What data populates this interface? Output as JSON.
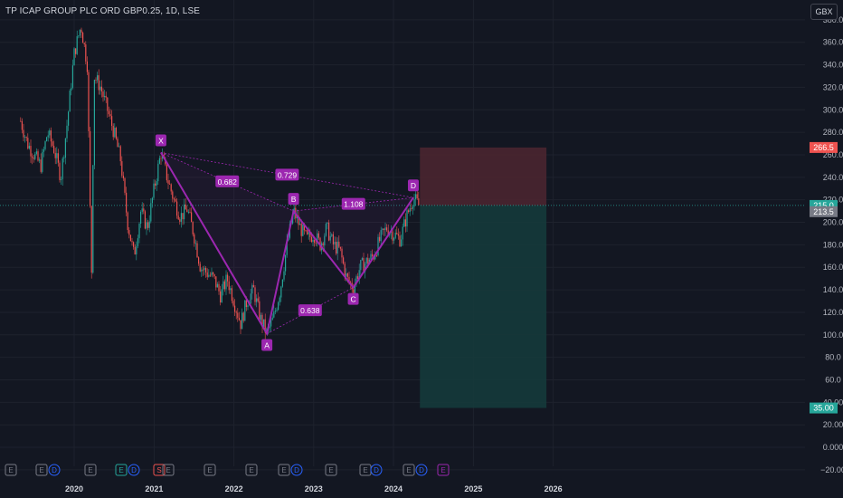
{
  "header": {
    "symbol_title": "TP ICAP GROUP PLC ORD GBP0.25, 1D, LSE"
  },
  "currency_button": "GBX",
  "colors": {
    "background": "#131722",
    "pattern": "#9c27b0",
    "pattern_label_bg": "#9c27b0",
    "stop_zone": "#4a2530",
    "target_zone": "#153a3b",
    "up_candle": "#26a69a",
    "down_candle": "#ef5350"
  },
  "chart_data": {
    "type": "candlestick",
    "title": "TP ICAP GROUP PLC ORD GBP0.25, 1D, LSE",
    "ylabel": "GBX",
    "ylim": [
      -35,
      395
    ],
    "y_ticks": [
      "380.0",
      "360.0",
      "340.0",
      "320.0",
      "300.0",
      "280.0",
      "260.0",
      "240.0",
      "220.0",
      "200.0",
      "180.0",
      "160.0",
      "140.0",
      "120.0",
      "100.0",
      "80.0",
      "60.0",
      "40.00",
      "20.00",
      "0.000",
      "−20.00"
    ],
    "x_ticks": [
      "2020",
      "2021",
      "2022",
      "2023",
      "2024",
      "2025",
      "2026"
    ],
    "price_path": [
      [
        "2019-05",
        290
      ],
      [
        "2019-06",
        270
      ],
      [
        "2019-08",
        250
      ],
      [
        "2019-09",
        280
      ],
      [
        "2019-10",
        265
      ],
      [
        "2019-11",
        240
      ],
      [
        "2019-12",
        290
      ],
      [
        "2020-01",
        350
      ],
      [
        "2020-02",
        375
      ],
      [
        "2020-03",
        340
      ],
      [
        "2020-03-20",
        150
      ],
      [
        "2020-04",
        330
      ],
      [
        "2020-05",
        320
      ],
      [
        "2020-06",
        300
      ],
      [
        "2020-07",
        280
      ],
      [
        "2020-08",
        255
      ],
      [
        "2020-09",
        200
      ],
      [
        "2020-10",
        170
      ],
      [
        "2020-11",
        210
      ],
      [
        "2020-12",
        195
      ],
      [
        "2021-01",
        230
      ],
      [
        "2021-02",
        262
      ],
      [
        "2021-03",
        240
      ],
      [
        "2021-04",
        220
      ],
      [
        "2021-05",
        205
      ],
      [
        "2021-06",
        212
      ],
      [
        "2021-07",
        190
      ],
      [
        "2021-08",
        160
      ],
      [
        "2021-10",
        150
      ],
      [
        "2021-11",
        135
      ],
      [
        "2021-12",
        150
      ],
      [
        "2022-01",
        130
      ],
      [
        "2022-02",
        110
      ],
      [
        "2022-03",
        130
      ],
      [
        "2022-04",
        140
      ],
      [
        "2022-05",
        115
      ],
      [
        "2022-06",
        101
      ],
      [
        "2022-07",
        115
      ],
      [
        "2022-08",
        140
      ],
      [
        "2022-09",
        180
      ],
      [
        "2022-10",
        210
      ],
      [
        "2022-11",
        195
      ],
      [
        "2022-12",
        185
      ],
      [
        "2023-01",
        190
      ],
      [
        "2023-02",
        180
      ],
      [
        "2023-03",
        195
      ],
      [
        "2023-04",
        180
      ],
      [
        "2023-05",
        175
      ],
      [
        "2023-06",
        150
      ],
      [
        "2023-07",
        142
      ],
      [
        "2023-08",
        160
      ],
      [
        "2023-09",
        165
      ],
      [
        "2023-10",
        170
      ],
      [
        "2023-11",
        185
      ],
      [
        "2023-12",
        195
      ],
      [
        "2024-01",
        190
      ],
      [
        "2024-02",
        185
      ],
      [
        "2024-03",
        205
      ],
      [
        "2024-04",
        222
      ],
      [
        "2024-05",
        213.5
      ]
    ],
    "harmonic_pattern": {
      "points": [
        {
          "label": "X",
          "date": "2021-02",
          "price": 262
        },
        {
          "label": "A",
          "date": "2022-06",
          "price": 101
        },
        {
          "label": "B",
          "date": "2022-10",
          "price": 210
        },
        {
          "label": "C",
          "date": "2023-07",
          "price": 142
        },
        {
          "label": "D",
          "date": "2024-04",
          "price": 222
        }
      ],
      "ratios": [
        {
          "value": "0.682",
          "between": [
            "X",
            "B"
          ]
        },
        {
          "value": "0.729",
          "between": [
            "X",
            "D"
          ]
        },
        {
          "value": "1.108",
          "between": [
            "B",
            "D"
          ]
        },
        {
          "value": "0.638",
          "between": [
            "A",
            "C"
          ]
        }
      ]
    },
    "position": {
      "entry": 215.0,
      "stop": 266.5,
      "target": 35.0,
      "start_date": "2024-05",
      "end_date": "2025-12"
    },
    "price_labels": [
      {
        "value": "266.5",
        "kind": "stop"
      },
      {
        "value": "215.0",
        "kind": "entry"
      },
      {
        "value": "213.5",
        "kind": "last"
      },
      {
        "value": "35.00",
        "kind": "target"
      }
    ],
    "event_markers": [
      "E",
      "E",
      "D",
      "E",
      "E",
      "D",
      "S",
      "E",
      "E",
      "E",
      "E",
      "D",
      "E",
      "E",
      "D",
      "E",
      "D",
      "E"
    ]
  }
}
